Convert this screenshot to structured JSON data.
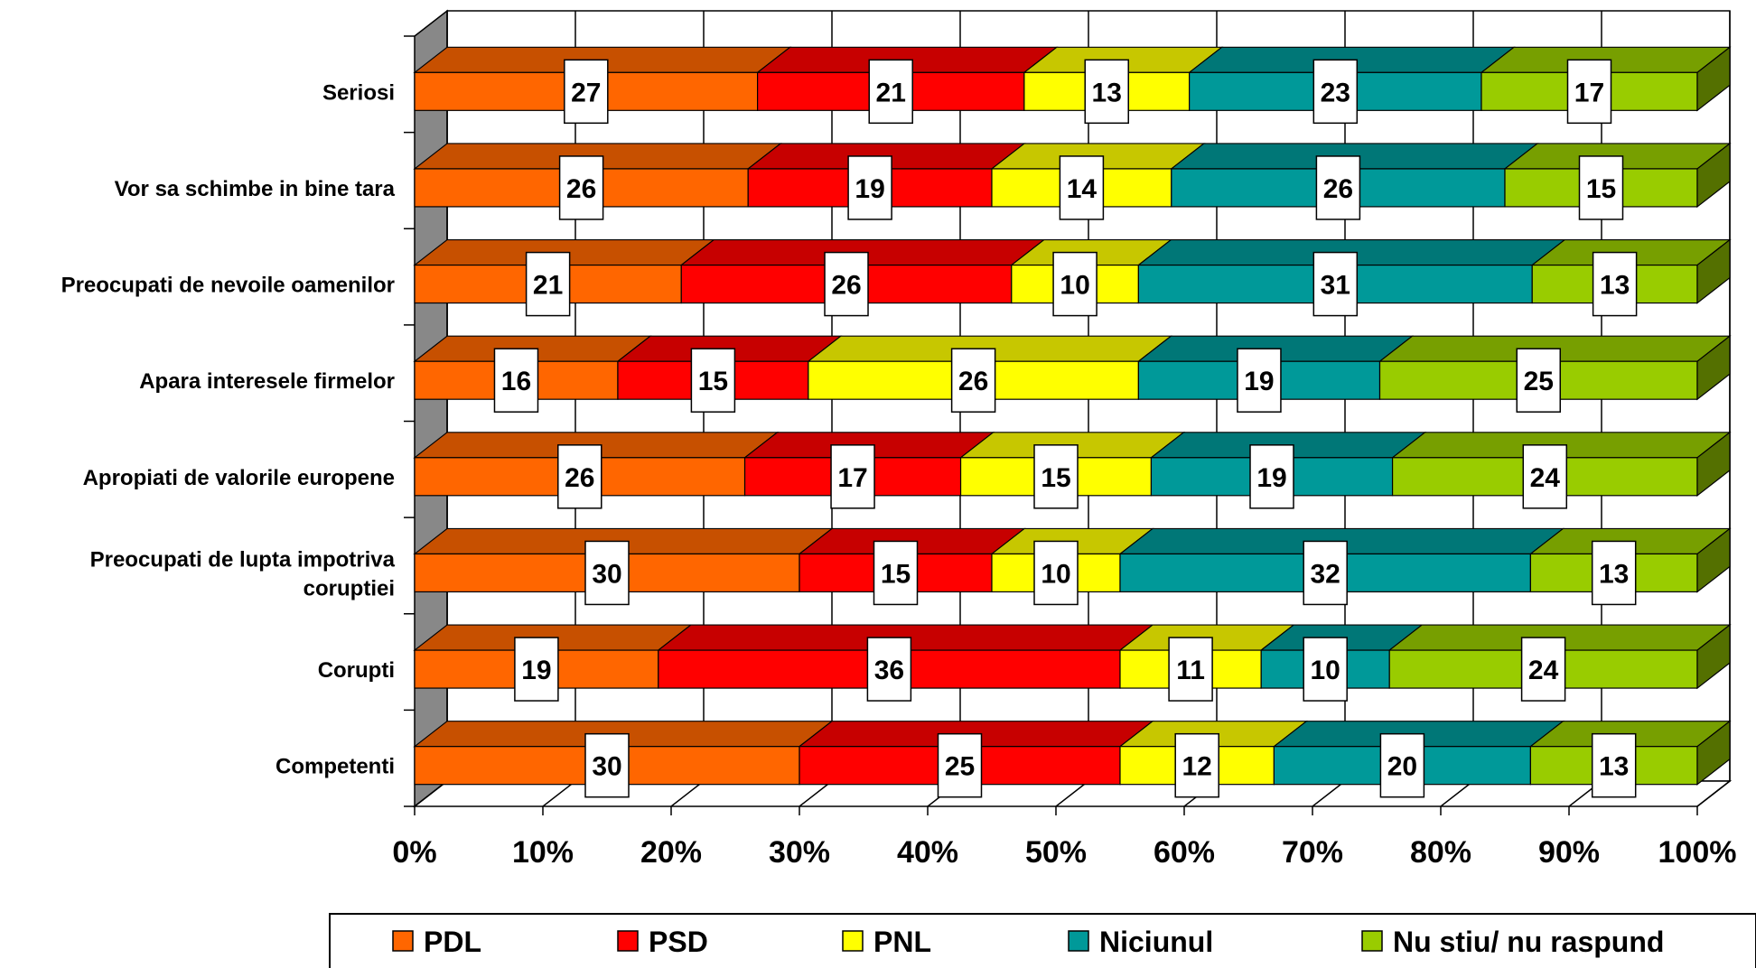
{
  "chart_data": {
    "type": "bar",
    "stacked": "percent",
    "orientation": "horizontal",
    "three_d": true,
    "categories": [
      [
        "Seriosi"
      ],
      [
        "Vor sa schimbe in bine tara"
      ],
      [
        "Preocupati de nevoile oamenilor"
      ],
      [
        "Apara interesele firmelor"
      ],
      [
        "Apropiati de valorile europene"
      ],
      [
        "Preocupati de lupta impotriva",
        "coruptiei"
      ],
      [
        "Corupti"
      ],
      [
        "Competenti"
      ]
    ],
    "series": [
      {
        "name": "PDL",
        "color": "#FF6600",
        "values": [
          27,
          26,
          21,
          16,
          26,
          30,
          19,
          30
        ]
      },
      {
        "name": "PSD",
        "color": "#FF0000",
        "values": [
          21,
          19,
          26,
          15,
          17,
          15,
          36,
          25
        ]
      },
      {
        "name": "PNL",
        "color": "#FFFF00",
        "values": [
          13,
          14,
          10,
          26,
          15,
          10,
          11,
          12
        ]
      },
      {
        "name": "Niciunul",
        "color": "#009999",
        "values": [
          23,
          26,
          31,
          19,
          19,
          32,
          10,
          20
        ]
      },
      {
        "name": "Nu stiu/ nu raspund",
        "color": "#99CC00",
        "values": [
          17,
          15,
          13,
          25,
          24,
          13,
          24,
          13
        ]
      }
    ],
    "xlim": [
      0,
      100
    ],
    "xticks": [
      "0%",
      "10%",
      "20%",
      "30%",
      "40%",
      "50%",
      "60%",
      "70%",
      "80%",
      "90%",
      "100%"
    ],
    "grid": true,
    "legend_position": "bottom"
  }
}
